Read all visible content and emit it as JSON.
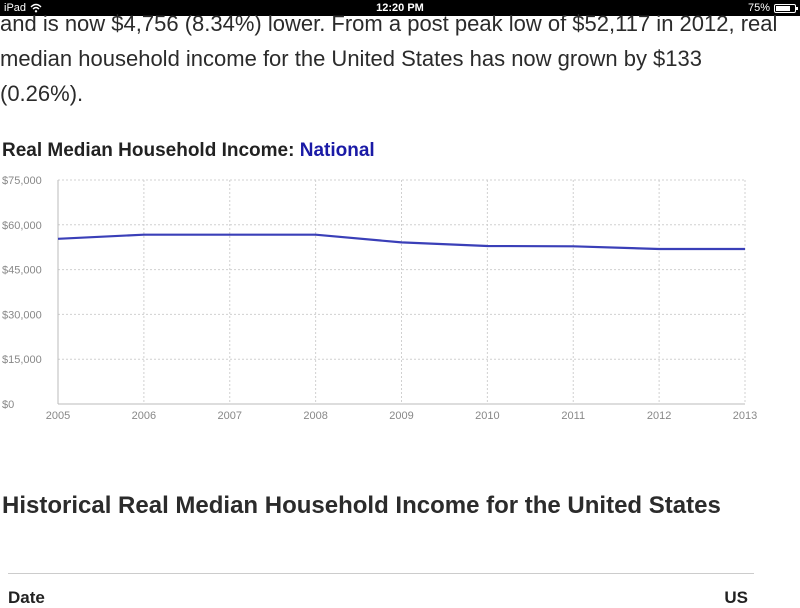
{
  "status_bar": {
    "device": "iPad",
    "time": "12:20 PM",
    "battery": "75%",
    "battery_level": 0.75
  },
  "article": {
    "intro": "and is now $4,756 (8.34%) lower. From a post peak low of $52,117 in 2012, real median household income for the United States has now grown by $133 (0.26%).",
    "chart_heading": {
      "prefix": "Real Median Household Income: ",
      "region": "National"
    },
    "section_title": "Historical Real Median Household Income for the United States",
    "table_header": {
      "col_left": "Date",
      "col_right": "US"
    }
  },
  "chart_data": {
    "type": "line",
    "title": "Real Median Household Income: National",
    "xlabel": "",
    "ylabel": "",
    "x": [
      "2005",
      "2006",
      "2007",
      "2008",
      "2009",
      "2010",
      "2011",
      "2012",
      "2013"
    ],
    "series": [
      {
        "name": "",
        "values": [
          55300,
          56700,
          56700,
          56700,
          54100,
          52900,
          52800,
          51900,
          51900
        ],
        "color": "#3a3fb8"
      }
    ],
    "ylim": [
      0,
      75000
    ],
    "yticks": [
      0,
      15000,
      30000,
      45000,
      60000,
      75000
    ],
    "ytick_labels": [
      "$0",
      "$15,000",
      "$30,000",
      "$45,000",
      "$60,000",
      "$75,000"
    ],
    "grid": true,
    "legend": "none"
  }
}
